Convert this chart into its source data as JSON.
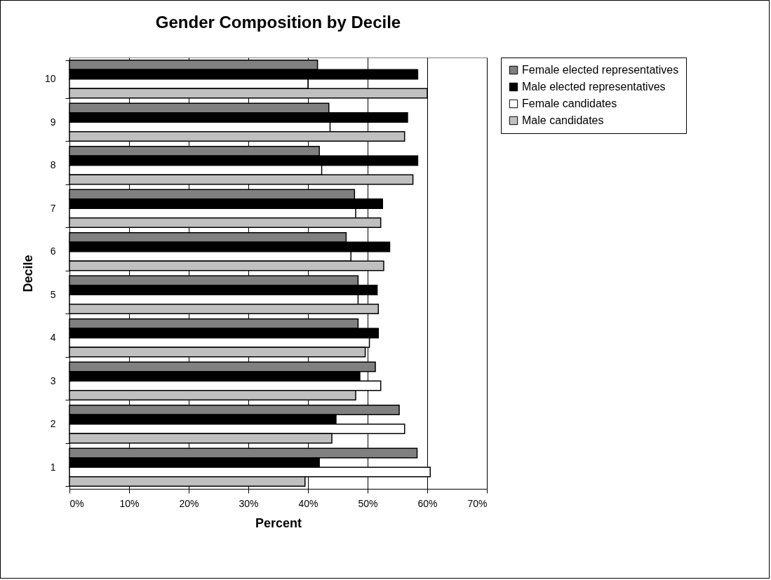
{
  "chart_data": {
    "type": "bar",
    "orientation": "horizontal",
    "title": "Gender Composition by Decile",
    "xlabel": "Percent",
    "ylabel": "Decile",
    "categories": [
      "10",
      "9",
      "8",
      "7",
      "6",
      "5",
      "4",
      "3",
      "2",
      "1"
    ],
    "series": [
      {
        "name": "Female elected representatives",
        "color": "#808080",
        "values": [
          41.6,
          43.5,
          41.9,
          47.8,
          46.4,
          48.4,
          48.4,
          51.3,
          55.3,
          58.3
        ]
      },
      {
        "name": "Male elected representatives",
        "color": "#000000",
        "values": [
          58.4,
          56.7,
          58.4,
          52.5,
          53.7,
          51.6,
          51.8,
          48.7,
          44.7,
          41.9
        ]
      },
      {
        "name": "Female candidates",
        "color": "#ffffff",
        "values": [
          40.0,
          43.7,
          42.3,
          48.0,
          47.2,
          48.4,
          50.3,
          52.2,
          56.2,
          60.5
        ]
      },
      {
        "name": "Male candidates",
        "color": "#c0c0c0",
        "values": [
          60.0,
          56.2,
          57.6,
          52.2,
          52.7,
          51.8,
          49.6,
          48.0,
          44.0,
          39.5
        ]
      }
    ],
    "xlim": [
      0,
      70
    ],
    "xticks": [
      {
        "value": 0,
        "label": "0%"
      },
      {
        "value": 10,
        "label": "10%"
      },
      {
        "value": 20,
        "label": "20%"
      },
      {
        "value": 30,
        "label": "30%"
      },
      {
        "value": 40,
        "label": "40%"
      },
      {
        "value": 50,
        "label": "50%"
      },
      {
        "value": 60,
        "label": "60%"
      },
      {
        "value": 70,
        "label": "70%"
      }
    ],
    "grid": "x",
    "legend": "right"
  }
}
